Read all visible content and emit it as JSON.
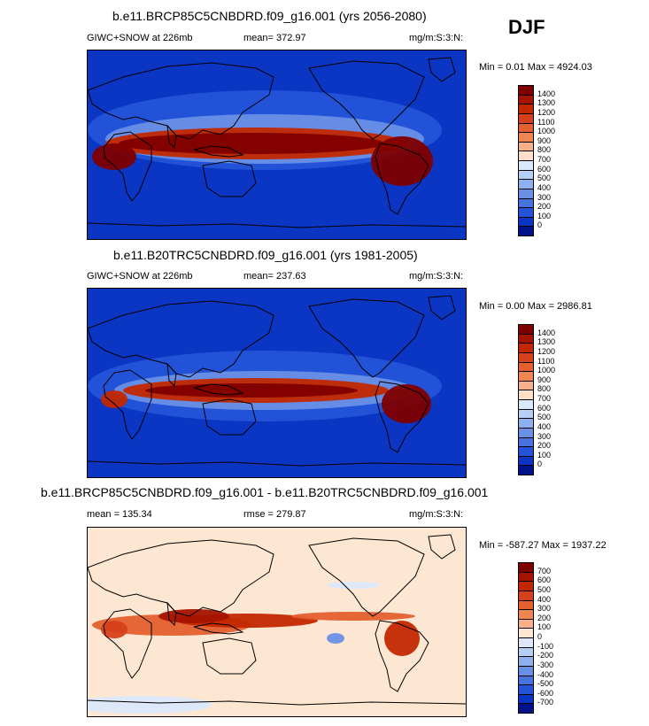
{
  "season": "DJF",
  "panels": [
    {
      "id": "future",
      "title": "b.e11.BRCP85C5CNBDRD.f09_g16.001 (yrs 2056-2080)",
      "left_label": "GIWC+SNOW at 226mb",
      "mid_label": "mean= 372.97",
      "units": "mg/m:S:3:N:",
      "minmax": "Min =   0.01 Max = 4924.03",
      "colorbar": {
        "labels": [
          "1400",
          "1300",
          "1200",
          "1100",
          "1000",
          "900",
          "800",
          "700",
          "600",
          "500",
          "400",
          "300",
          "200",
          "100",
          "0"
        ],
        "colors": [
          "#7f0000",
          "#a51400",
          "#c22800",
          "#d6401a",
          "#e4602f",
          "#ef8550",
          "#f7b08b",
          "#fde0ca",
          "#dbe8fb",
          "#b6cff5",
          "#8eb0ee",
          "#6a90e6",
          "#4673df",
          "#2354d8",
          "#0b36c3",
          "#00118c"
        ]
      },
      "field_type": "absolute"
    },
    {
      "id": "present",
      "title": "b.e11.B20TRC5CNBDRD.f09_g16.001 (yrs 1981-2005)",
      "left_label": "GIWC+SNOW at 226mb",
      "mid_label": "mean= 237.63",
      "units": "mg/m:S:3:N:",
      "minmax": "Min =   0.00 Max = 2986.81",
      "colorbar": {
        "labels": [
          "1400",
          "1300",
          "1200",
          "1100",
          "1000",
          "900",
          "800",
          "700",
          "600",
          "500",
          "400",
          "300",
          "200",
          "100",
          "0"
        ],
        "colors": [
          "#7f0000",
          "#a51400",
          "#c22800",
          "#d6401a",
          "#e4602f",
          "#ef8550",
          "#f7b08b",
          "#fde0ca",
          "#dbe8fb",
          "#b6cff5",
          "#8eb0ee",
          "#6a90e6",
          "#4673df",
          "#2354d8",
          "#0b36c3",
          "#00118c"
        ]
      },
      "field_type": "absolute"
    },
    {
      "id": "difference",
      "title": "b.e11.BRCP85C5CNBDRD.f09_g16.001 - b.e11.B20TRC5CNBDRD.f09_g16.001",
      "left_label": "mean = 135.34",
      "mid_label": "rmse = 279.87",
      "units": "mg/m:S:3:N:",
      "minmax": "Min = -587.27 Max = 1937.22",
      "colorbar": {
        "labels": [
          "700",
          "600",
          "500",
          "400",
          "300",
          "200",
          "100",
          "0",
          "-100",
          "-200",
          "-300",
          "-400",
          "-500",
          "-600",
          "-700"
        ],
        "colors": [
          "#7f0000",
          "#a51400",
          "#c22800",
          "#d6401a",
          "#e4602f",
          "#ef8550",
          "#f7b08b",
          "#fde6d2",
          "#dbe8fb",
          "#b6cff5",
          "#8eb0ee",
          "#6a90e6",
          "#4673df",
          "#2354d8",
          "#0b36c3",
          "#00118c"
        ]
      },
      "field_type": "difference"
    }
  ],
  "chart_data": {
    "type": "heatmap",
    "description_variable": "GIWC+SNOW at 226mb",
    "season": "DJF",
    "maps": [
      {
        "title": "b.e11.BRCP85C5CNBDRD.f09_g16.001 (yrs 2056-2080)",
        "mean": 372.97,
        "min": 0.01,
        "max": 4924.03,
        "levels": [
          0,
          100,
          200,
          300,
          400,
          500,
          600,
          700,
          800,
          900,
          1000,
          1100,
          1200,
          1300,
          1400
        ]
      },
      {
        "title": "b.e11.B20TRC5CNBDRD.f09_g16.001 (yrs 1981-2005)",
        "mean": 237.63,
        "min": 0.0,
        "max": 2986.81,
        "levels": [
          0,
          100,
          200,
          300,
          400,
          500,
          600,
          700,
          800,
          900,
          1000,
          1100,
          1200,
          1300,
          1400
        ]
      },
      {
        "title": "b.e11.BRCP85C5CNBDRD.f09_g16.001 - b.e11.B20TRC5CNBDRD.f09_g16.001",
        "mean": 135.34,
        "rmse": 279.87,
        "min": -587.27,
        "max": 1937.22,
        "levels": [
          -700,
          -600,
          -500,
          -400,
          -300,
          -200,
          -100,
          0,
          100,
          200,
          300,
          400,
          500,
          600,
          700
        ]
      }
    ]
  }
}
